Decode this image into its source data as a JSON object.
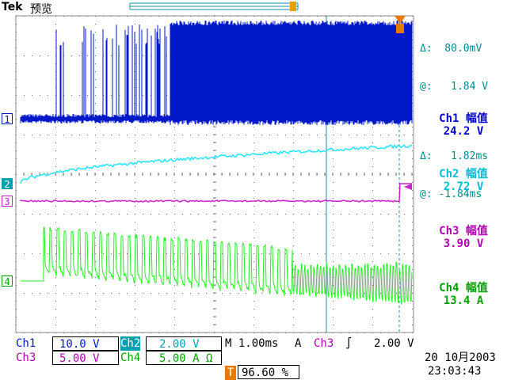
{
  "header": {
    "brand": "Tek",
    "mode": "预览"
  },
  "cursors": {
    "delta_v": "Δ:  80.0mV",
    "at_v": "@:   1.84 V",
    "delta_t": "Δ:   1.82ms",
    "at_t": "@: -1.84ms"
  },
  "measurements": [
    {
      "title": "Ch1 幅值",
      "value": "24.2 V",
      "color": "#0000cd"
    },
    {
      "title": "Ch2 幅值",
      "value": "2.72 V",
      "color": "#00bcd4"
    },
    {
      "title": "Ch3 幅值",
      "value": "3.90 V",
      "color": "#b000b0"
    },
    {
      "title": "Ch4 幅值",
      "value": "13.4 A",
      "color": "#00a000"
    }
  ],
  "channel_markers": [
    "1",
    "2",
    "3",
    "4"
  ],
  "trigger_marker": "T",
  "settings": {
    "ch1_label": "Ch1",
    "ch1_scale": "10.0 V",
    "ch2_label": "Ch2",
    "ch2_scale": "2.00 V",
    "ch3_label": "Ch3",
    "ch3_scale": "5.00 V",
    "ch4_label": "Ch4",
    "ch4_scale": "5.00 A Ω",
    "timebase": "M 1.00ms",
    "trigger_mode": "A",
    "trigger_source": "Ch3",
    "trigger_slope": "∫",
    "trigger_level": "2.00 V",
    "trigger_pos_marker": "T",
    "trigger_position": "96.60 %"
  },
  "datetime": {
    "date": "20 10月2003",
    "time": "23:03:43"
  },
  "colors": {
    "ch1": "#0018c8",
    "ch2": "#22e6ff",
    "ch3": "#cc22cc",
    "ch4": "#22ee22",
    "cursor": "#1a8ab0"
  }
}
